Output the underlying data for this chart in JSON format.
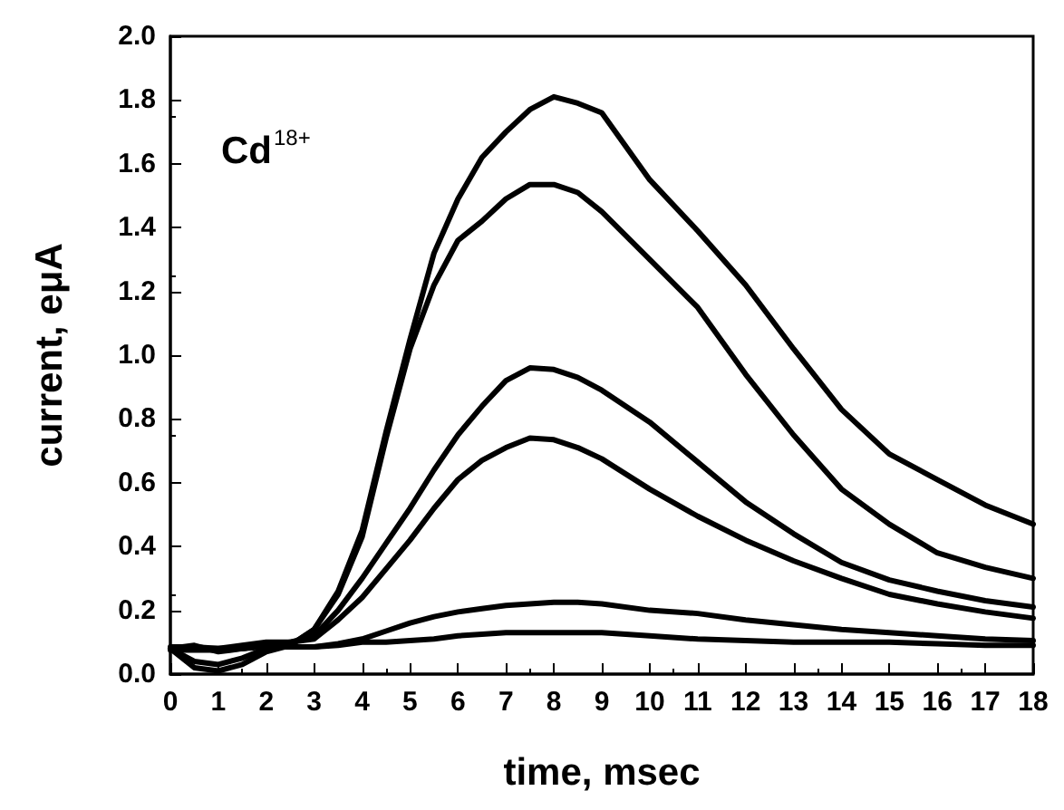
{
  "chart_data": {
    "type": "line",
    "xlabel": "time, msec",
    "ylabel": "current, eμA",
    "annotations": [
      "Cd$^{18+}$"
    ],
    "x": [
      0,
      0.5,
      1,
      1.5,
      2,
      2.5,
      3,
      3.5,
      4,
      4.5,
      5,
      5.5,
      6,
      6.5,
      7,
      7.5,
      8,
      8.5,
      9,
      10,
      11,
      12,
      13,
      14,
      15,
      16,
      17,
      18
    ],
    "series": [
      {
        "color": "#000000",
        "values": [
          0.08,
          0.02,
          0.01,
          0.03,
          0.07,
          0.09,
          0.14,
          0.26,
          0.45,
          0.76,
          1.05,
          1.32,
          1.49,
          1.62,
          1.7,
          1.77,
          1.81,
          1.79,
          1.76,
          1.55,
          1.39,
          1.22,
          1.02,
          0.83,
          0.69,
          0.61,
          0.53,
          0.47
        ]
      },
      {
        "color": "#000000",
        "values": [
          0.08,
          0.04,
          0.03,
          0.05,
          0.08,
          0.09,
          0.14,
          0.25,
          0.43,
          0.74,
          1.02,
          1.22,
          1.36,
          1.42,
          1.49,
          1.535,
          1.535,
          1.51,
          1.45,
          1.3,
          1.15,
          0.94,
          0.75,
          0.58,
          0.47,
          0.38,
          0.335,
          0.3
        ]
      },
      {
        "color": "#000000",
        "values": [
          0.08,
          0.09,
          0.07,
          0.08,
          0.09,
          0.1,
          0.12,
          0.2,
          0.3,
          0.41,
          0.52,
          0.64,
          0.75,
          0.84,
          0.92,
          0.96,
          0.955,
          0.93,
          0.89,
          0.79,
          0.665,
          0.54,
          0.44,
          0.35,
          0.295,
          0.26,
          0.23,
          0.21
        ]
      },
      {
        "color": "#000000",
        "values": [
          0.08,
          0.08,
          0.08,
          0.09,
          0.1,
          0.1,
          0.11,
          0.17,
          0.24,
          0.33,
          0.42,
          0.52,
          0.61,
          0.67,
          0.71,
          0.74,
          0.735,
          0.71,
          0.675,
          0.58,
          0.495,
          0.42,
          0.355,
          0.3,
          0.25,
          0.22,
          0.195,
          0.175
        ]
      },
      {
        "color": "#000000",
        "values": [
          0.085,
          0.085,
          0.08,
          0.08,
          0.09,
          0.085,
          0.085,
          0.095,
          0.11,
          0.135,
          0.16,
          0.18,
          0.195,
          0.205,
          0.215,
          0.22,
          0.225,
          0.225,
          0.22,
          0.2,
          0.19,
          0.17,
          0.155,
          0.14,
          0.13,
          0.12,
          0.11,
          0.105
        ]
      },
      {
        "color": "#000000",
        "values": [
          0.075,
          0.075,
          0.075,
          0.08,
          0.085,
          0.085,
          0.085,
          0.09,
          0.1,
          0.1,
          0.105,
          0.11,
          0.12,
          0.125,
          0.13,
          0.13,
          0.13,
          0.13,
          0.13,
          0.12,
          0.11,
          0.105,
          0.1,
          0.1,
          0.1,
          0.095,
          0.09,
          0.09
        ]
      }
    ],
    "xlim": [
      0,
      18
    ],
    "xticks": [
      0,
      1,
      2,
      3,
      4,
      5,
      6,
      7,
      8,
      9,
      10,
      11,
      12,
      13,
      14,
      15,
      16,
      17,
      18
    ],
    "ylim": [
      0,
      2
    ],
    "yticks": [
      {
        "value": 0,
        "label": "0.0"
      },
      0.2,
      0.4,
      0.6,
      0.8,
      {
        "value": 1,
        "label": "1.0"
      },
      1.2,
      1.4,
      1.6,
      1.8,
      {
        "value": 2,
        "label": "2.0"
      }
    ],
    "grid": false,
    "marker": "none",
    "line_style": "solid"
  }
}
